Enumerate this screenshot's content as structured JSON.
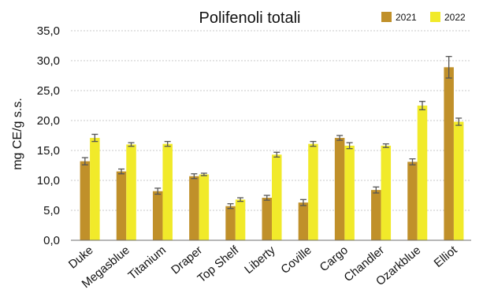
{
  "chart_data": {
    "type": "bar",
    "title": "Polifenoli totali",
    "ylabel": "mg CE/g s.s.",
    "xlabel": "",
    "ylim": [
      0,
      35
    ],
    "yticks": [
      "0,0",
      "5,0",
      "10,0",
      "15,0",
      "20,0",
      "25,0",
      "30,0",
      "35,0"
    ],
    "grid": true,
    "legend_position": "top-right",
    "categories": [
      "Duke",
      "Megasblue",
      "Titanium",
      "Draper",
      "Top Shelf",
      "Liberty",
      "Coville",
      "Cargo",
      "Chandler",
      "Ozarkblue",
      "Elliot"
    ],
    "series": [
      {
        "name": "2021",
        "color": "#c0902a",
        "values": [
          13.2,
          11.5,
          8.2,
          10.7,
          5.7,
          7.1,
          6.3,
          17.1,
          8.4,
          13.1,
          28.9
        ],
        "errors": [
          0.6,
          0.4,
          0.5,
          0.4,
          0.4,
          0.4,
          0.5,
          0.4,
          0.5,
          0.5,
          1.8
        ]
      },
      {
        "name": "2022",
        "color": "#f1ea2a",
        "values": [
          17.1,
          16.0,
          16.1,
          11.0,
          6.8,
          14.3,
          16.1,
          15.8,
          15.8,
          22.5,
          19.8
        ],
        "errors": [
          0.6,
          0.3,
          0.4,
          0.2,
          0.3,
          0.4,
          0.4,
          0.5,
          0.3,
          0.7,
          0.6
        ]
      }
    ]
  }
}
